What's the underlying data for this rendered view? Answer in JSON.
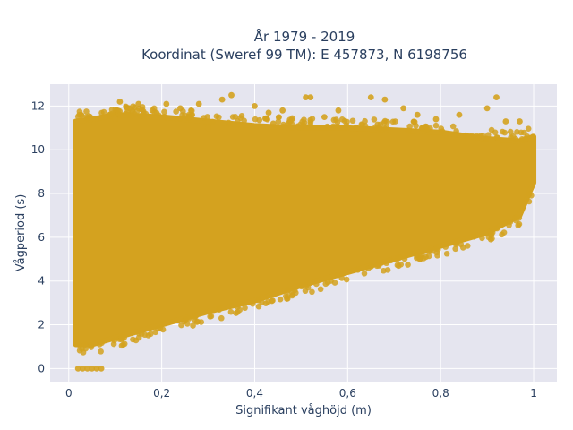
{
  "chart_data": {
    "type": "scatter",
    "title_lines": [
      "År 1979 - 2019",
      "Koordinat (Sweref 99 TM): E 457873, N 6198756"
    ],
    "xlabel": "Signifikant våghöjd (m)",
    "ylabel": "Vågperiod (s)",
    "xlim": [
      -0.04,
      1.05
    ],
    "ylim": [
      -0.6,
      13.0
    ],
    "x_ticks": [
      0,
      0.2,
      0.4,
      0.6,
      0.8,
      1
    ],
    "x_tick_labels": [
      "0",
      "0,2",
      "0,4",
      "0,6",
      "0,8",
      "1"
    ],
    "y_ticks": [
      0,
      2,
      4,
      6,
      8,
      10,
      12
    ],
    "y_tick_labels": [
      "0",
      "2",
      "4",
      "6",
      "8",
      "10",
      "12"
    ],
    "grid": true,
    "colors": {
      "marker": "#d4a21f",
      "plot_bg": "#e5e5ef",
      "grid": "#ffffff",
      "text": "#2a3f5f"
    },
    "envelope": [
      {
        "x": 0.015,
        "y_low": 1.1,
        "y_high": 11.3
      },
      {
        "x": 0.05,
        "y_low": 1.1,
        "y_high": 11.4
      },
      {
        "x": 0.1,
        "y_low": 1.4,
        "y_high": 11.6
      },
      {
        "x": 0.2,
        "y_low": 2.0,
        "y_high": 11.5
      },
      {
        "x": 0.3,
        "y_low": 2.6,
        "y_high": 11.3
      },
      {
        "x": 0.4,
        "y_low": 3.1,
        "y_high": 11.1
      },
      {
        "x": 0.5,
        "y_low": 3.8,
        "y_high": 11.0
      },
      {
        "x": 0.6,
        "y_low": 4.4,
        "y_high": 11.0
      },
      {
        "x": 0.7,
        "y_low": 5.0,
        "y_high": 10.9
      },
      {
        "x": 0.8,
        "y_low": 5.6,
        "y_high": 10.8
      },
      {
        "x": 0.9,
        "y_low": 6.2,
        "y_high": 10.5
      },
      {
        "x": 0.97,
        "y_low": 7.0,
        "y_high": 10.4
      },
      {
        "x": 1.0,
        "y_low": 8.5,
        "y_high": 10.6
      }
    ],
    "points": [
      [
        0.02,
        0.0
      ],
      [
        0.03,
        0.0
      ],
      [
        0.04,
        0.0
      ],
      [
        0.05,
        0.0
      ],
      [
        0.06,
        0.0
      ],
      [
        0.07,
        0.0
      ],
      [
        0.11,
        12.2
      ],
      [
        0.13,
        11.9
      ],
      [
        0.15,
        12.1
      ],
      [
        0.18,
        11.8
      ],
      [
        0.21,
        12.1
      ],
      [
        0.24,
        11.9
      ],
      [
        0.28,
        12.1
      ],
      [
        0.33,
        12.3
      ],
      [
        0.35,
        12.5
      ],
      [
        0.4,
        12.0
      ],
      [
        0.43,
        11.7
      ],
      [
        0.46,
        11.8
      ],
      [
        0.51,
        12.4
      ],
      [
        0.52,
        12.4
      ],
      [
        0.58,
        11.8
      ],
      [
        0.65,
        12.4
      ],
      [
        0.68,
        12.3
      ],
      [
        0.72,
        11.9
      ],
      [
        0.75,
        11.6
      ],
      [
        0.79,
        11.4
      ],
      [
        0.84,
        11.6
      ],
      [
        0.9,
        11.9
      ],
      [
        0.92,
        12.4
      ],
      [
        0.94,
        11.3
      ],
      [
        0.97,
        11.3
      ],
      [
        0.1,
        11.4
      ],
      [
        0.3,
        11.0
      ],
      [
        0.44,
        11.2
      ],
      [
        0.55,
        11.5
      ],
      [
        0.62,
        11.0
      ]
    ]
  }
}
